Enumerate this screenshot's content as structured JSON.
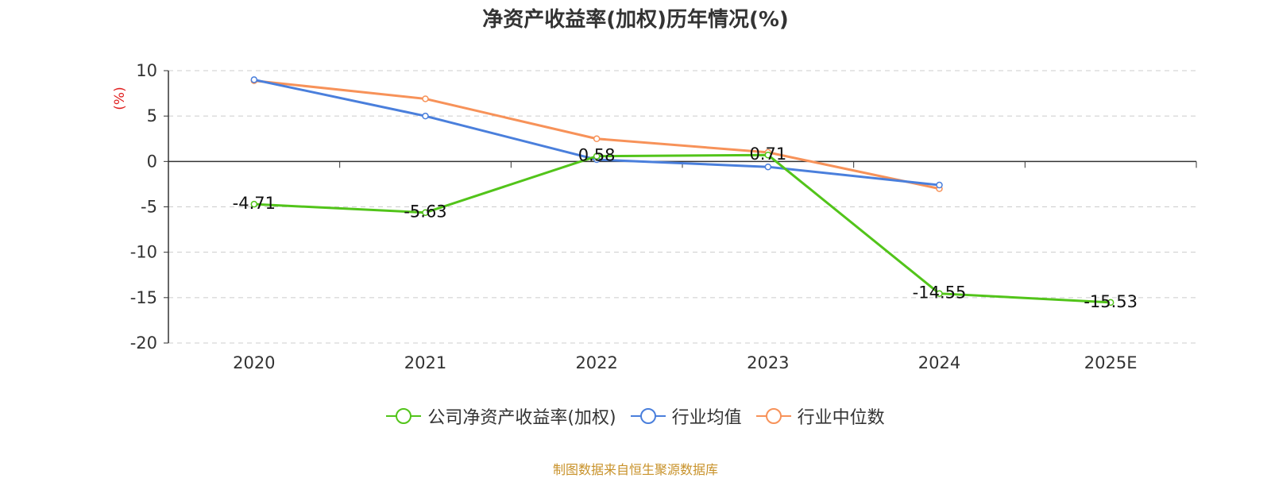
{
  "chart_data": {
    "type": "line",
    "title": "净资产收益率(加权)历年情况(%)",
    "ylabel": "(%)",
    "xlabel": "",
    "categories": [
      "2020",
      "2021",
      "2022",
      "2023",
      "2024",
      "2025E"
    ],
    "ylim": [
      -20,
      10
    ],
    "yticks": [
      10,
      5,
      0,
      -5,
      -10,
      -15,
      -20
    ],
    "grid": true,
    "legend_position": "bottom",
    "series": [
      {
        "name": "公司净资产收益率(加权)",
        "color": "#52c41a",
        "values": [
          -4.71,
          -5.63,
          0.58,
          0.71,
          -14.55,
          -15.53
        ],
        "labels": [
          "-4.71",
          "-5.63",
          "0.58",
          "0.71",
          "-14.55",
          "-15.53"
        ]
      },
      {
        "name": "行业均值",
        "color": "#4a7fdc",
        "values": [
          9.0,
          5.0,
          0.2,
          -0.6,
          -2.6,
          null
        ]
      },
      {
        "name": "行业中位数",
        "color": "#f79259",
        "values": [
          8.9,
          6.9,
          2.5,
          1.0,
          -3.0,
          null
        ]
      }
    ]
  },
  "footer": {
    "source": "制图数据来自恒生聚源数据库"
  }
}
